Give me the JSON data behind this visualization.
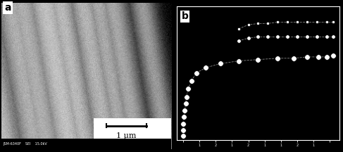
{
  "fig_width": 4.87,
  "fig_height": 2.16,
  "dpi": 100,
  "bg_color": "#000000",
  "panel_a_label": "a",
  "panel_b_label": "b",
  "scale_bar_text": "1 μm",
  "plot_bg": "#000000",
  "marker_face": "#ffffff",
  "marker_edge": "#000000",
  "spine_color": "#ffffff",
  "sem_info": "JSM-6340F    SEI    15.0kV",
  "curve1_x_vert": [
    0.04,
    0.04,
    0.04,
    0.045,
    0.05,
    0.055,
    0.06,
    0.07,
    0.09,
    0.12,
    0.18,
    0.27,
    0.38,
    0.5,
    0.62,
    0.72,
    0.8,
    0.87,
    0.92,
    0.96
  ],
  "curve1_y_vert": [
    0.03,
    0.07,
    0.12,
    0.17,
    0.22,
    0.27,
    0.32,
    0.38,
    0.44,
    0.5,
    0.54,
    0.57,
    0.59,
    0.6,
    0.61,
    0.61,
    0.62,
    0.62,
    0.62,
    0.63
  ],
  "curve2_x": [
    0.38,
    0.44,
    0.5,
    0.56,
    0.62,
    0.68,
    0.74,
    0.8,
    0.86,
    0.92,
    0.96
  ],
  "curve2_y": [
    0.74,
    0.76,
    0.77,
    0.77,
    0.77,
    0.77,
    0.77,
    0.77,
    0.77,
    0.77,
    0.77
  ],
  "curve3_x": [
    0.38,
    0.44,
    0.5,
    0.56,
    0.62,
    0.68,
    0.74,
    0.8,
    0.86,
    0.92,
    0.96
  ],
  "curve3_y": [
    0.83,
    0.86,
    0.87,
    0.87,
    0.88,
    0.88,
    0.88,
    0.88,
    0.88,
    0.88,
    0.88
  ],
  "xtick_positions": [
    0.04,
    0.14,
    0.24,
    0.34,
    0.44,
    0.54,
    0.64,
    0.74,
    0.84,
    0.94
  ],
  "xtick_labels": [
    "",
    "1",
    "2",
    "1",
    "2",
    "1",
    "1",
    "2",
    "1",
    ""
  ]
}
